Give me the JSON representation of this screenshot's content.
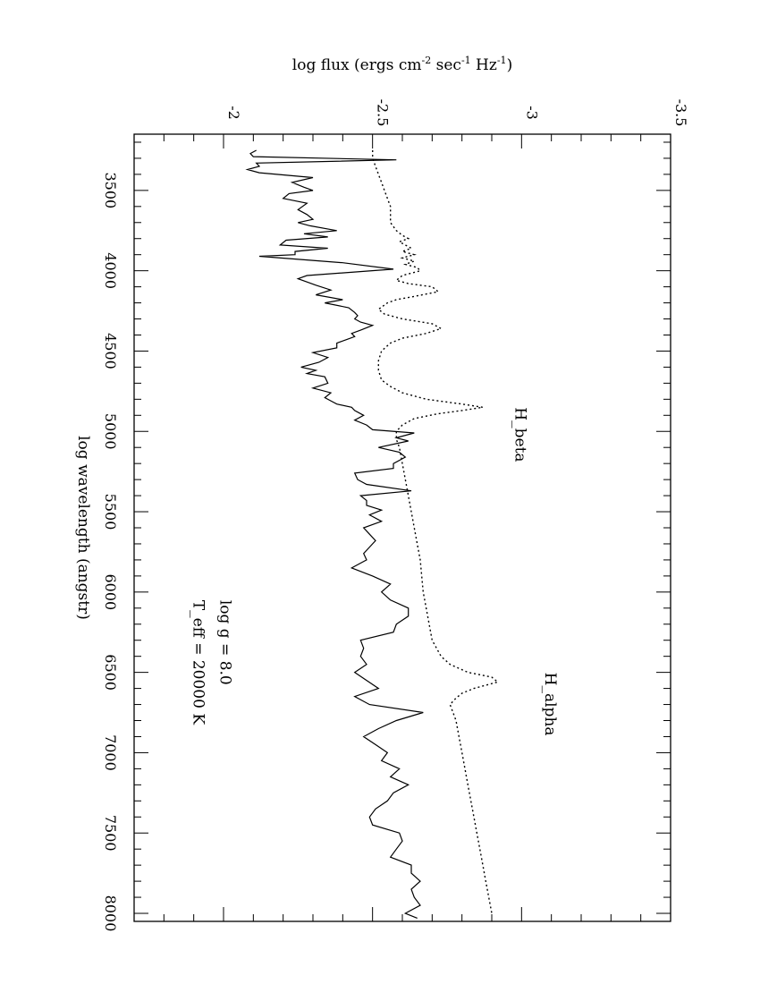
{
  "chart_data": {
    "type": "line",
    "orientation": "rotated-90",
    "title": "",
    "xlabel": "log wavelength (angstr)",
    "ylabel_parts": [
      "log flux (ergs cm",
      "-2",
      " sec",
      "-1",
      " Hz",
      "-1",
      ")"
    ],
    "xlim": [
      3150,
      8050
    ],
    "ylim": [
      -3.5,
      -1.7
    ],
    "x_ticks": [
      3500,
      4000,
      4500,
      5000,
      5500,
      6000,
      6500,
      7000,
      7500,
      8000
    ],
    "x_tick_labels": [
      "3500",
      "4000",
      "4500",
      "5000",
      "5500",
      "6000",
      "6500",
      "7000",
      "7500",
      "8000"
    ],
    "y_ticks": [
      -3.5,
      -3,
      -2.5,
      -2
    ],
    "y_tick_labels": [
      "-3.5",
      "-3",
      "-2.5",
      "-2"
    ],
    "grid": false,
    "annotations": [
      {
        "text": "T_eff = 20000 K",
        "x": 6050,
        "y": -1.9
      },
      {
        "text": "log g = 8.0",
        "x": 6050,
        "y": -1.99
      },
      {
        "text": "H_beta",
        "x": 4850,
        "y": -2.98
      },
      {
        "text": "H_alpha",
        "x": 6500,
        "y": -3.08
      }
    ],
    "series": [
      {
        "style": "solid",
        "x": [
          3250,
          3270,
          3290,
          3310,
          3330,
          3350,
          3370,
          3390,
          3420,
          3450,
          3480,
          3500,
          3520,
          3550,
          3580,
          3620,
          3650,
          3680,
          3700,
          3720,
          3750,
          3770,
          3790,
          3810,
          3840,
          3860,
          3880,
          3900,
          3910,
          3950,
          3990,
          4030,
          4050,
          4070,
          4090,
          4120,
          4150,
          4180,
          4200,
          4230,
          4260,
          4280,
          4300,
          4320,
          4340,
          4370,
          4390,
          4410,
          4430,
          4450,
          4480,
          4510,
          4540,
          4570,
          4600,
          4620,
          4640,
          4660,
          4700,
          4730,
          4760,
          4790,
          4810,
          4830,
          4850,
          4870,
          4900,
          4930,
          4960,
          4990,
          5010,
          5040,
          5060,
          5100,
          5130,
          5160,
          5200,
          5230,
          5260,
          5300,
          5330,
          5370,
          5400,
          5430,
          5460,
          5490,
          5520,
          5560,
          5600,
          5640,
          5680,
          5720,
          5760,
          5800,
          5850,
          5900,
          5950,
          6000,
          6050,
          6100,
          6150,
          6200,
          6250,
          6300,
          6350,
          6400,
          6450,
          6500,
          6550,
          6600,
          6650,
          6700,
          6750,
          6800,
          6850,
          6900,
          6950,
          7000,
          7050,
          7100,
          7150,
          7200,
          7250,
          7300,
          7350,
          7400,
          7450,
          7500,
          7550,
          7600,
          7650,
          7700,
          7750,
          7800,
          7850,
          7900,
          7950,
          8000,
          8030
        ],
        "y": [
          -2.11,
          -2.09,
          -2.1,
          -2.58,
          -2.11,
          -2.12,
          -2.08,
          -2.12,
          -2.3,
          -2.23,
          -2.27,
          -2.3,
          -2.22,
          -2.2,
          -2.28,
          -2.25,
          -2.28,
          -2.3,
          -2.25,
          -2.29,
          -2.38,
          -2.27,
          -2.35,
          -2.21,
          -2.19,
          -2.35,
          -2.24,
          -2.24,
          -2.12,
          -2.4,
          -2.57,
          -2.28,
          -2.25,
          -2.28,
          -2.31,
          -2.36,
          -2.31,
          -2.4,
          -2.34,
          -2.42,
          -2.44,
          -2.45,
          -2.44,
          -2.46,
          -2.5,
          -2.46,
          -2.43,
          -2.44,
          -2.41,
          -2.38,
          -2.38,
          -2.3,
          -2.35,
          -2.32,
          -2.26,
          -2.31,
          -2.28,
          -2.34,
          -2.35,
          -2.3,
          -2.36,
          -2.34,
          -2.36,
          -2.38,
          -2.43,
          -2.44,
          -2.47,
          -2.44,
          -2.48,
          -2.5,
          -2.64,
          -2.58,
          -2.62,
          -2.52,
          -2.59,
          -2.61,
          -2.57,
          -2.57,
          -2.44,
          -2.45,
          -2.48,
          -2.63,
          -2.46,
          -2.48,
          -2.48,
          -2.53,
          -2.49,
          -2.53,
          -2.47,
          -2.49,
          -2.51,
          -2.49,
          -2.47,
          -2.48,
          -2.43,
          -2.5,
          -2.56,
          -2.53,
          -2.56,
          -2.62,
          -2.62,
          -2.58,
          -2.57,
          -2.46,
          -2.47,
          -2.46,
          -2.48,
          -2.44,
          -2.48,
          -2.52,
          -2.44,
          -2.49,
          -2.67,
          -2.58,
          -2.52,
          -2.47,
          -2.51,
          -2.55,
          -2.53,
          -2.59,
          -2.56,
          -2.62,
          -2.57,
          -2.55,
          -2.51,
          -2.49,
          -2.5,
          -2.59,
          -2.6,
          -2.58,
          -2.56,
          -2.63,
          -2.63,
          -2.66,
          -2.63,
          -2.64,
          -2.66,
          -2.61,
          -2.65
        ]
      },
      {
        "style": "dotted",
        "x": [
          3250,
          3300,
          3350,
          3400,
          3450,
          3500,
          3550,
          3600,
          3650,
          3700,
          3750,
          3780,
          3800,
          3820,
          3840,
          3860,
          3880,
          3900,
          3920,
          3940,
          3960,
          3980,
          4000,
          4030,
          4060,
          4080,
          4100,
          4130,
          4160,
          4180,
          4200,
          4240,
          4270,
          4300,
          4330,
          4360,
          4390,
          4420,
          4450,
          4500,
          4560,
          4620,
          4680,
          4720,
          4760,
          4800,
          4830,
          4850,
          4870,
          4890,
          4920,
          4960,
          5000,
          5050,
          5100,
          5200,
          5400,
          5600,
          5800,
          6000,
          6200,
          6300,
          6400,
          6450,
          6500,
          6530,
          6560,
          6580,
          6600,
          6630,
          6660,
          6700,
          6750,
          6800,
          7000,
          7200,
          7400,
          7600,
          7800,
          8000
        ],
        "y": [
          -2.5,
          -2.5,
          -2.51,
          -2.52,
          -2.53,
          -2.54,
          -2.55,
          -2.56,
          -2.56,
          -2.56,
          -2.58,
          -2.6,
          -2.62,
          -2.59,
          -2.61,
          -2.63,
          -2.6,
          -2.64,
          -2.6,
          -2.64,
          -2.61,
          -2.65,
          -2.66,
          -2.6,
          -2.58,
          -2.62,
          -2.7,
          -2.72,
          -2.64,
          -2.58,
          -2.55,
          -2.52,
          -2.54,
          -2.6,
          -2.7,
          -2.73,
          -2.68,
          -2.6,
          -2.56,
          -2.53,
          -2.52,
          -2.52,
          -2.53,
          -2.56,
          -2.6,
          -2.68,
          -2.8,
          -2.87,
          -2.8,
          -2.72,
          -2.64,
          -2.6,
          -2.58,
          -2.58,
          -2.59,
          -2.6,
          -2.62,
          -2.64,
          -2.66,
          -2.67,
          -2.69,
          -2.7,
          -2.73,
          -2.76,
          -2.82,
          -2.9,
          -2.92,
          -2.88,
          -2.84,
          -2.8,
          -2.78,
          -2.76,
          -2.77,
          -2.78,
          -2.8,
          -2.82,
          -2.84,
          -2.86,
          -2.88,
          -2.9
        ]
      }
    ]
  }
}
